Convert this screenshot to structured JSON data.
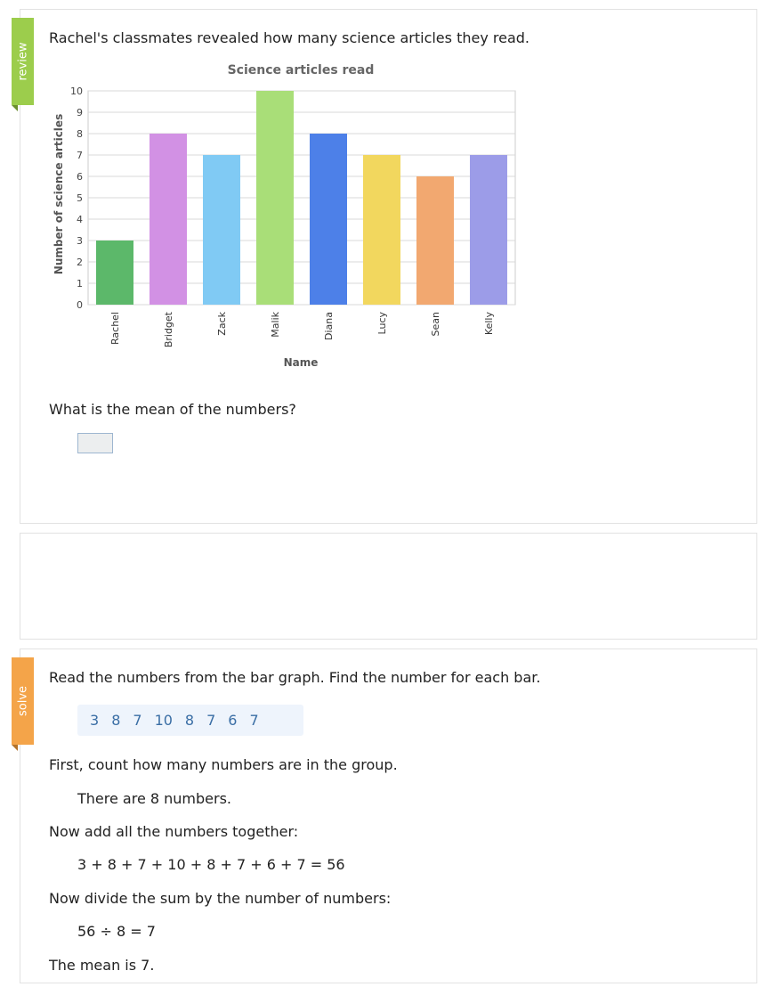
{
  "review_label": "review",
  "solve_label": "solve",
  "question": "Rachel's classmates revealed how many science articles they read.",
  "prompt": "What is the mean of the numbers?",
  "chart_data": {
    "type": "bar",
    "title": "Science articles read",
    "xlabel": "Name",
    "ylabel": "Number of science articles",
    "categories": [
      "Rachel",
      "Bridget",
      "Zack",
      "Malik",
      "Diana",
      "Lucy",
      "Sean",
      "Kelly"
    ],
    "values": [
      3,
      8,
      7,
      10,
      8,
      7,
      6,
      7
    ],
    "colors": [
      "#5cb86a",
      "#d291e4",
      "#80caf4",
      "#a9de78",
      "#4d80e8",
      "#f2d75e",
      "#f2a870",
      "#9c9ce8"
    ],
    "ylim": [
      0,
      10
    ],
    "yticks": [
      "0",
      "1",
      "2",
      "3",
      "4",
      "5",
      "6",
      "7",
      "8",
      "9",
      "10"
    ],
    "grid": true
  },
  "solution": {
    "step1": "Read the numbers from the bar graph. Find the number for each bar.",
    "numbers": [
      "3",
      "8",
      "7",
      "10",
      "8",
      "7",
      "6",
      "7"
    ],
    "step2": "First, count how many numbers are in the group.",
    "step2_result": "There are 8 numbers.",
    "step3": "Now add all the numbers together:",
    "step3_result": "3 + 8 + 7 + 10 + 8 + 7 + 6 + 7 = 56",
    "step4": "Now divide the sum by the number of numbers:",
    "step4_result": "56 ÷ 8 = 7",
    "conclusion": "The mean is 7."
  }
}
